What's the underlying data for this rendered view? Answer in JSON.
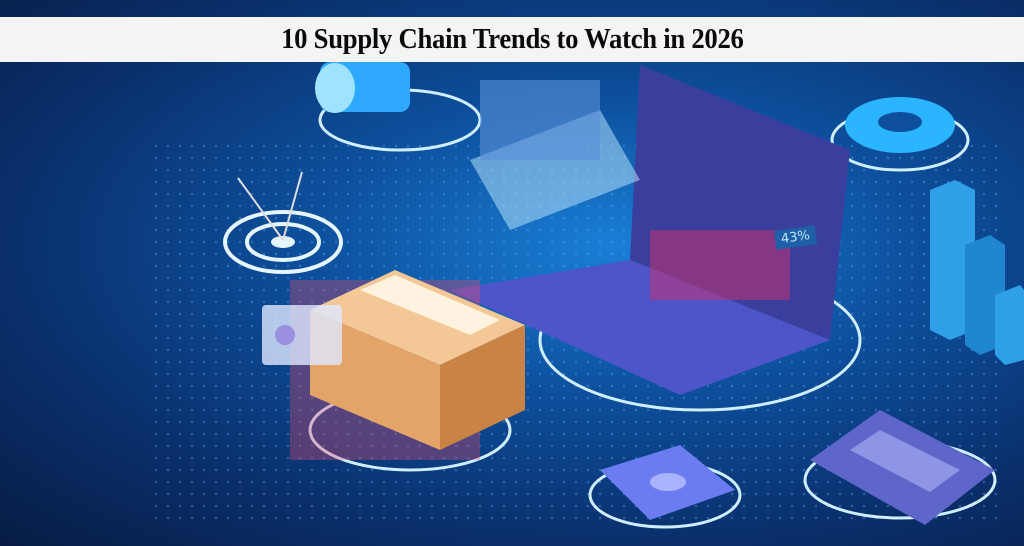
{
  "banner": {
    "title": "10 Supply Chain Trends to Watch in 2026"
  },
  "illustration": {
    "laptop_stat": "43%",
    "icons": [
      "megaphone-icon",
      "target-icon",
      "gear-icon",
      "bar-chart-icon",
      "package-box-icon",
      "laptop-icon",
      "money-icon",
      "calculator-icon"
    ],
    "colors": {
      "background": "#0d4f9c",
      "glow": "#4fc3ff",
      "banner": "#f4f4f4"
    }
  }
}
